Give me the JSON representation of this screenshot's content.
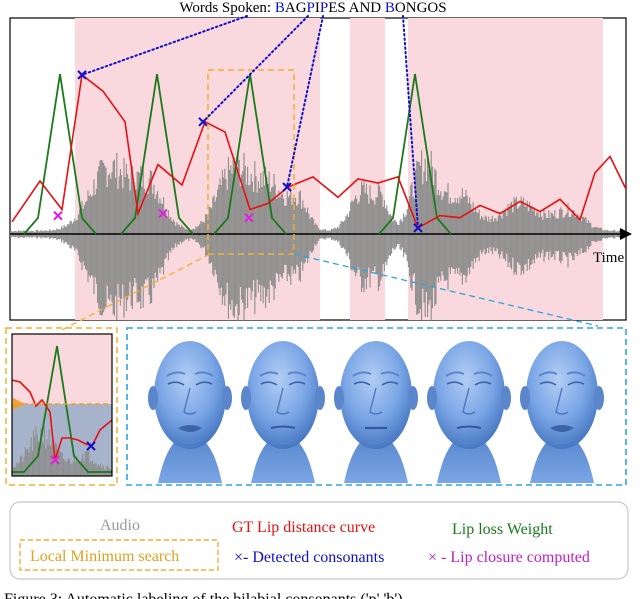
{
  "title": {
    "prefix": "Words Spoken: ",
    "segments": [
      {
        "text": "B",
        "color": "#1010cc"
      },
      {
        "text": "AG",
        "color": "#000000"
      },
      {
        "text": "P",
        "color": "#1010cc"
      },
      {
        "text": "I",
        "color": "#000000"
      },
      {
        "text": "P",
        "color": "#1010cc"
      },
      {
        "text": "ES AND ",
        "color": "#000000"
      },
      {
        "text": "B",
        "color": "#1010cc"
      },
      {
        "text": "ONGOS",
        "color": "#000000"
      }
    ]
  },
  "axis": {
    "time_label": "Time"
  },
  "colors": {
    "audio": "#8c8c8c",
    "lip_distance": "#e81010",
    "lip_loss": "#1a7a1a",
    "detected": "#1010cc",
    "closure": "#e020e0",
    "search_box": "#f0b030",
    "zoom_box": "#2aa7e0",
    "region": "#f9d9dd",
    "mesh": "#6f9ee0"
  },
  "chart_data": {
    "type": "line",
    "regions": [
      [
        75,
        320
      ],
      [
        350,
        385
      ],
      [
        408,
        603
      ]
    ],
    "red_x": [
      12,
      40,
      62,
      82,
      103,
      125,
      138,
      158,
      182,
      205,
      225,
      250,
      268,
      288,
      313,
      338,
      358,
      378,
      398,
      418,
      440,
      460,
      480,
      500,
      520,
      540,
      560,
      580,
      595,
      610,
      628
    ],
    "red_y": [
      0.06,
      0.26,
      0.12,
      0.78,
      0.7,
      0.55,
      0.1,
      0.34,
      0.24,
      0.55,
      0.5,
      0.12,
      0.15,
      0.23,
      0.28,
      0.18,
      0.27,
      0.25,
      0.28,
      0.03,
      0.09,
      0.08,
      0.14,
      0.1,
      0.16,
      0.11,
      0.17,
      0.07,
      0.3,
      0.38,
      0.2
    ],
    "green_peaks": [
      60,
      157,
      250,
      415
    ],
    "detected_points": [
      [
        82,
        0.78
      ],
      [
        203,
        0.55
      ],
      [
        287,
        0.23
      ],
      [
        418,
        0.03
      ]
    ],
    "closure_points": [
      [
        58,
        0.09
      ],
      [
        163,
        0.1
      ],
      [
        249,
        0.08
      ]
    ]
  },
  "faces": {
    "count": 5
  },
  "legend": {
    "audio": "Audio",
    "gt_lip": "GT Lip distance curve",
    "lip_loss": "Lip loss Weight",
    "local_min": "Local Minimum search",
    "detected": "×- Detected consonants",
    "closure": "× - Lip closure computed"
  },
  "caption": "Figure 3:  Automatic labeling of the bilabial consonants ('p','b')"
}
